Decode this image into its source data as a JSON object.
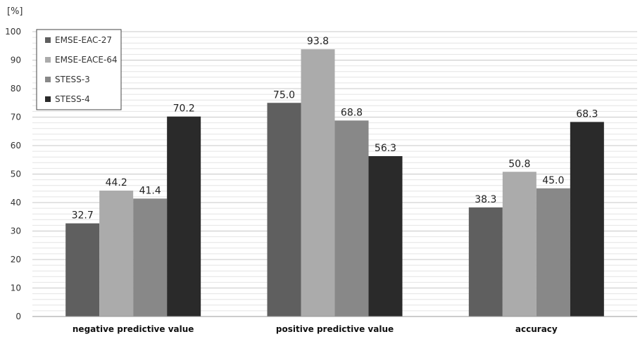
{
  "chart_data": {
    "type": "bar",
    "title": "",
    "xlabel": "",
    "ylabel": "[%]",
    "ylim": [
      0,
      100
    ],
    "yticks": [
      0,
      10,
      20,
      30,
      40,
      50,
      60,
      70,
      80,
      90,
      100
    ],
    "ytick_labels": [
      "0",
      "10",
      "20",
      "30",
      "40",
      "50",
      "60",
      "70",
      "80",
      "90",
      "100"
    ],
    "minor_grid_step": 2,
    "grid": true,
    "legend_position": "top-left",
    "categories": [
      "negative predictive value",
      "positive predictive value",
      "accuracy"
    ],
    "series": [
      {
        "name": "EMSE-EAC-27",
        "color": "#5f5f5f",
        "values": [
          32.7,
          75.0,
          38.3
        ],
        "labels": [
          "32.7",
          "75.0",
          "38.3"
        ]
      },
      {
        "name": "EMSE-EACE-64",
        "color": "#ababab",
        "values": [
          44.2,
          93.8,
          50.8
        ],
        "labels": [
          "44.2",
          "93.8",
          "50.8"
        ]
      },
      {
        "name": "STESS-3",
        "color": "#888888",
        "values": [
          41.4,
          68.8,
          45.0
        ],
        "labels": [
          "41.4",
          "68.8",
          "45.0"
        ]
      },
      {
        "name": "STESS-4",
        "color": "#2a2a2a",
        "values": [
          70.2,
          56.3,
          68.3
        ],
        "labels": [
          "70.2",
          "56.3",
          "68.3"
        ]
      }
    ]
  }
}
